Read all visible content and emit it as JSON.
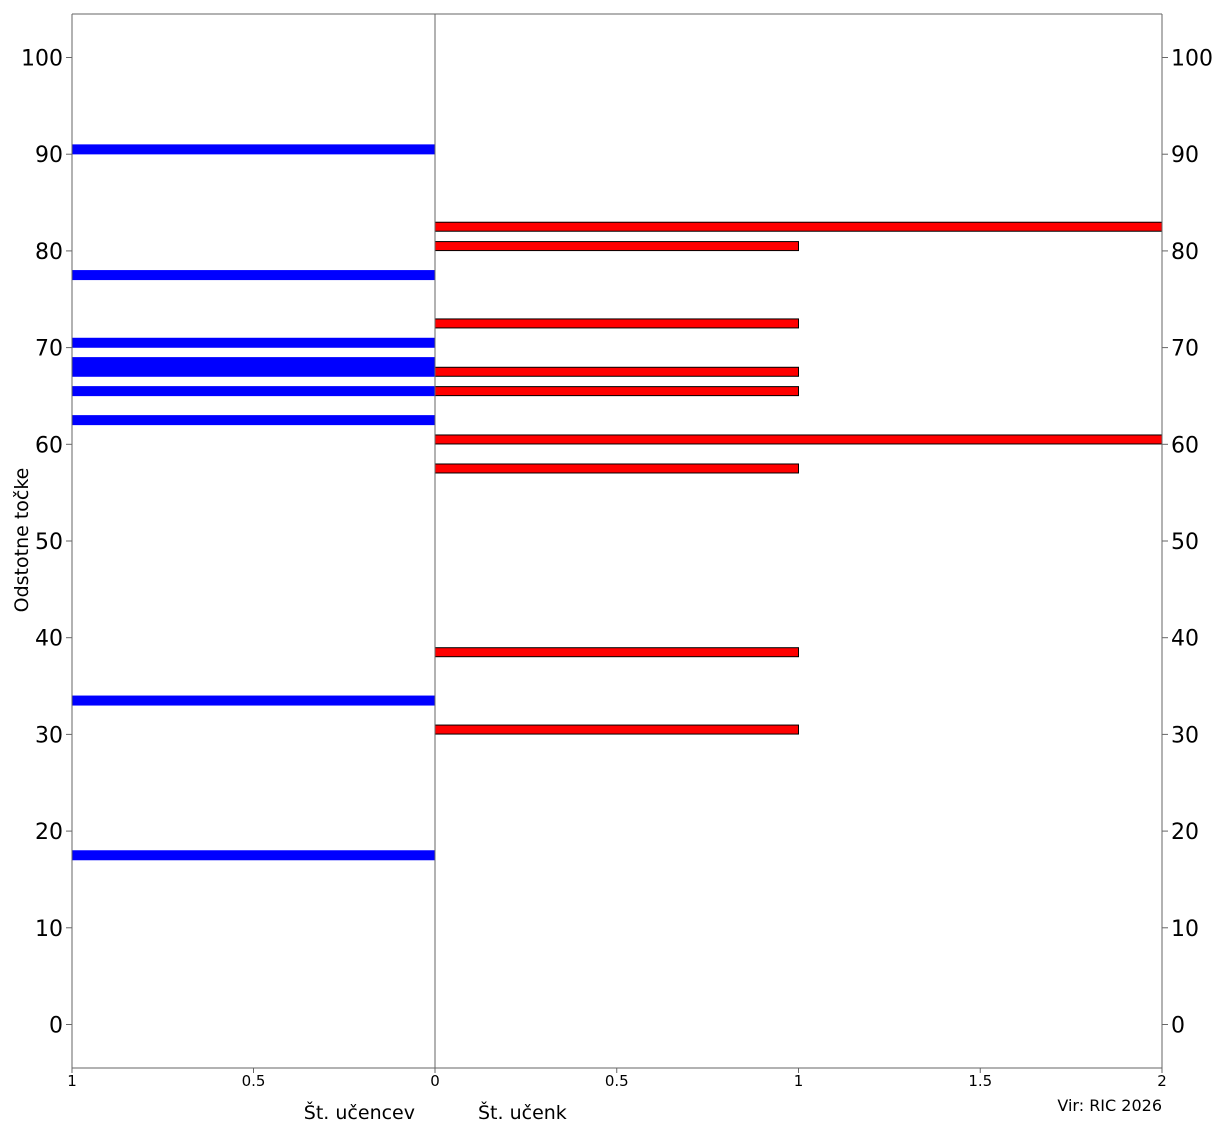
{
  "chart_data": {
    "type": "bar",
    "orientation": "horizontal-butterfly",
    "ylabel": "Odstotne točke",
    "ylim": [
      -4.5,
      104.5
    ],
    "yticks": [
      "0",
      "10",
      "20",
      "30",
      "40",
      "50",
      "60",
      "70",
      "80",
      "90",
      "100"
    ],
    "grid": false,
    "left_panel": {
      "xlabel": "Št. učencev",
      "xlim": [
        1,
        0
      ],
      "xticks": [
        "1",
        "0.5",
        "0"
      ],
      "color": "#0000ff",
      "bars": [
        {
          "y": 17.5,
          "value": 1
        },
        {
          "y": 33.5,
          "value": 1
        },
        {
          "y": 62.5,
          "value": 1
        },
        {
          "y": 65.5,
          "value": 1
        },
        {
          "y": 67.5,
          "value": 1
        },
        {
          "y": 68.5,
          "value": 1
        },
        {
          "y": 70.5,
          "value": 1
        },
        {
          "y": 77.5,
          "value": 1
        },
        {
          "y": 90.5,
          "value": 1
        }
      ]
    },
    "right_panel": {
      "xlabel": "Št. učenk",
      "xlim": [
        0,
        2
      ],
      "xticks": [
        "0",
        "0.5",
        "1",
        "1.5",
        "2"
      ],
      "color": "#ff0000",
      "bars": [
        {
          "y": 30.5,
          "value": 1
        },
        {
          "y": 38.5,
          "value": 1
        },
        {
          "y": 57.5,
          "value": 1
        },
        {
          "y": 60.5,
          "value": 2
        },
        {
          "y": 65.5,
          "value": 1
        },
        {
          "y": 67.5,
          "value": 1
        },
        {
          "y": 72.5,
          "value": 1
        },
        {
          "y": 80.5,
          "value": 1
        },
        {
          "y": 82.5,
          "value": 2
        }
      ]
    },
    "source": "Vir: RIC 2026"
  }
}
